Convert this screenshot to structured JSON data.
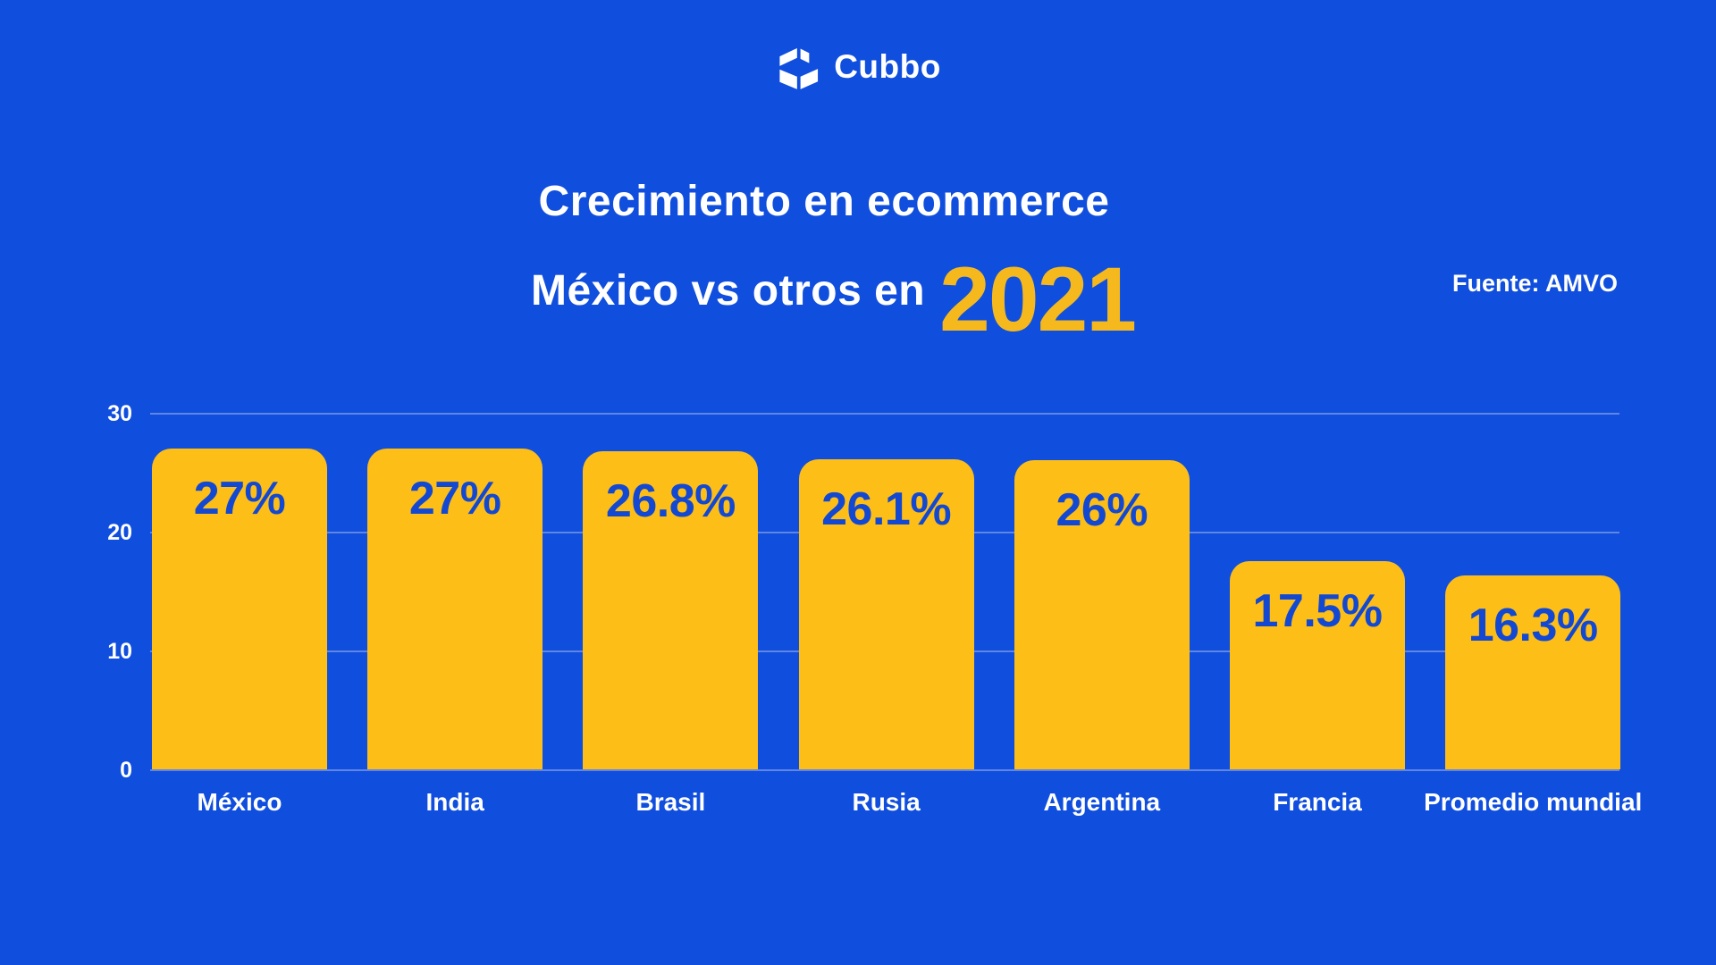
{
  "brand": {
    "name": "Cubbo",
    "icon": "open-box-icon"
  },
  "title": {
    "line1": "Crecimiento en ecommerce",
    "line2": "México vs otros en",
    "year": "2021"
  },
  "source": {
    "label": "Fuente: AMVO"
  },
  "chart_data": {
    "type": "bar",
    "title": "Crecimiento en ecommerce México vs otros en 2021",
    "categories": [
      "México",
      "India",
      "Brasil",
      "Rusia",
      "Argentina",
      "Francia",
      "Promedio mundial"
    ],
    "values": [
      27,
      27,
      26.8,
      26.1,
      26,
      17.5,
      16.3
    ],
    "value_labels": [
      "27%",
      "27%",
      "26.8%",
      "26.1%",
      "26%",
      "17.5%",
      "16.3%"
    ],
    "y_ticks": [
      0,
      10,
      20,
      30
    ],
    "ylim": [
      0,
      30
    ],
    "xlabel": "",
    "ylabel": "",
    "grid": true,
    "legend_position": "none"
  },
  "colors": {
    "background": "#104EDE",
    "bar": "#FDBE17",
    "year_accent": "#F5B91D",
    "bar_label_text": "#1248D2",
    "gridline": "#96ACE8",
    "text": "#FFFFFF"
  }
}
